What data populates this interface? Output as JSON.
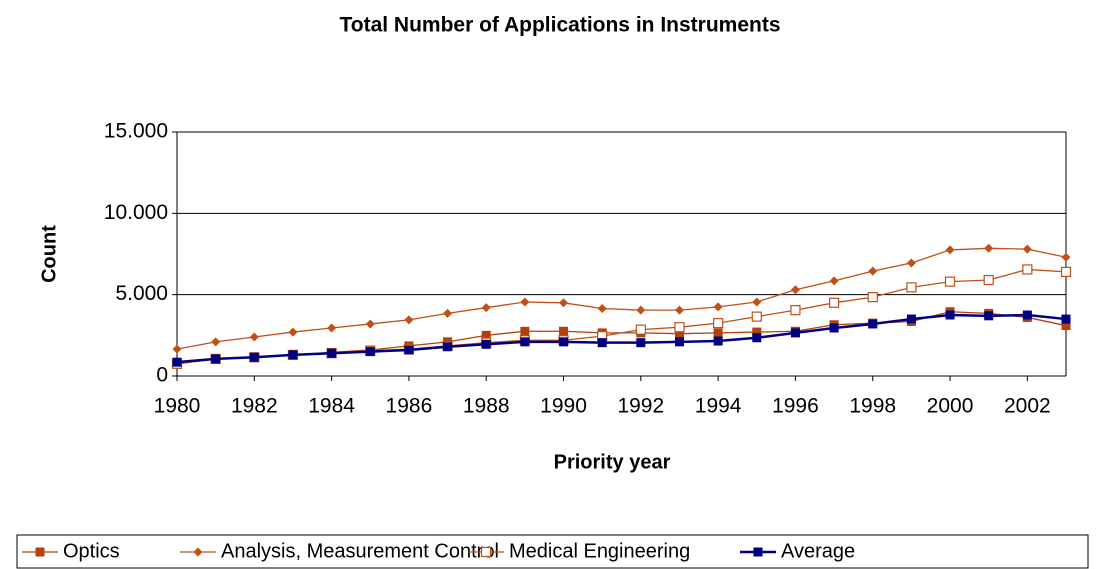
{
  "chart_data": {
    "type": "line",
    "title": "Total Number of Applications in Instruments",
    "x_label": "Priority year",
    "y_label": "Count",
    "x": [
      1980,
      1981,
      1982,
      1983,
      1984,
      1985,
      1986,
      1987,
      1988,
      1989,
      1990,
      1991,
      1992,
      1993,
      1994,
      1995,
      1996,
      1997,
      1998,
      1999,
      2000,
      2001,
      2002,
      2003
    ],
    "xlim": [
      1980,
      2003
    ],
    "xticks": [
      1980,
      1982,
      1984,
      1986,
      1988,
      1990,
      1992,
      1994,
      1996,
      1998,
      2000,
      2002
    ],
    "ylim": [
      0,
      15000
    ],
    "yticks": [
      0,
      {
        "value": 5000,
        "label": "5.000"
      },
      {
        "value": 10000,
        "label": "10.000"
      },
      {
        "value": 15000,
        "label": "15.000"
      }
    ],
    "grid": true,
    "legend": "bottom",
    "series": [
      {
        "name": "Optics",
        "color": "#b5400c",
        "marker": "square",
        "values": [
          750,
          1050,
          1150,
          1300,
          1450,
          1600,
          1850,
          2100,
          2500,
          2750,
          2750,
          2650,
          2650,
          2600,
          2650,
          2700,
          2750,
          3150,
          3250,
          3350,
          3950,
          3850,
          3600,
          3100
        ]
      },
      {
        "name": "Analysis, Measurement Control",
        "color": "#c0501a",
        "marker": "diamond",
        "values": [
          1650,
          2100,
          2400,
          2700,
          2950,
          3200,
          3450,
          3850,
          4200,
          4550,
          4500,
          4150,
          4050,
          4050,
          4250,
          4550,
          5300,
          5850,
          6450,
          6950,
          7750,
          7850,
          7800,
          7300
        ]
      },
      {
        "name": "Medical Engineering",
        "color": "#c0501a",
        "marker": "square-open",
        "values": [
          750,
          1050,
          1150,
          1300,
          1400,
          1550,
          1650,
          1850,
          2050,
          2200,
          2200,
          2450,
          2850,
          3000,
          3250,
          3650,
          4050,
          4500,
          4850,
          5450,
          5800,
          5900,
          6550,
          6400
        ]
      },
      {
        "name": "Average",
        "color": "#000080",
        "marker": "square",
        "values": [
          850,
          1050,
          1150,
          1300,
          1400,
          1500,
          1600,
          1800,
          1950,
          2100,
          2100,
          2050,
          2050,
          2100,
          2150,
          2350,
          2650,
          2950,
          3200,
          3500,
          3750,
          3700,
          3750,
          3500
        ]
      }
    ]
  }
}
